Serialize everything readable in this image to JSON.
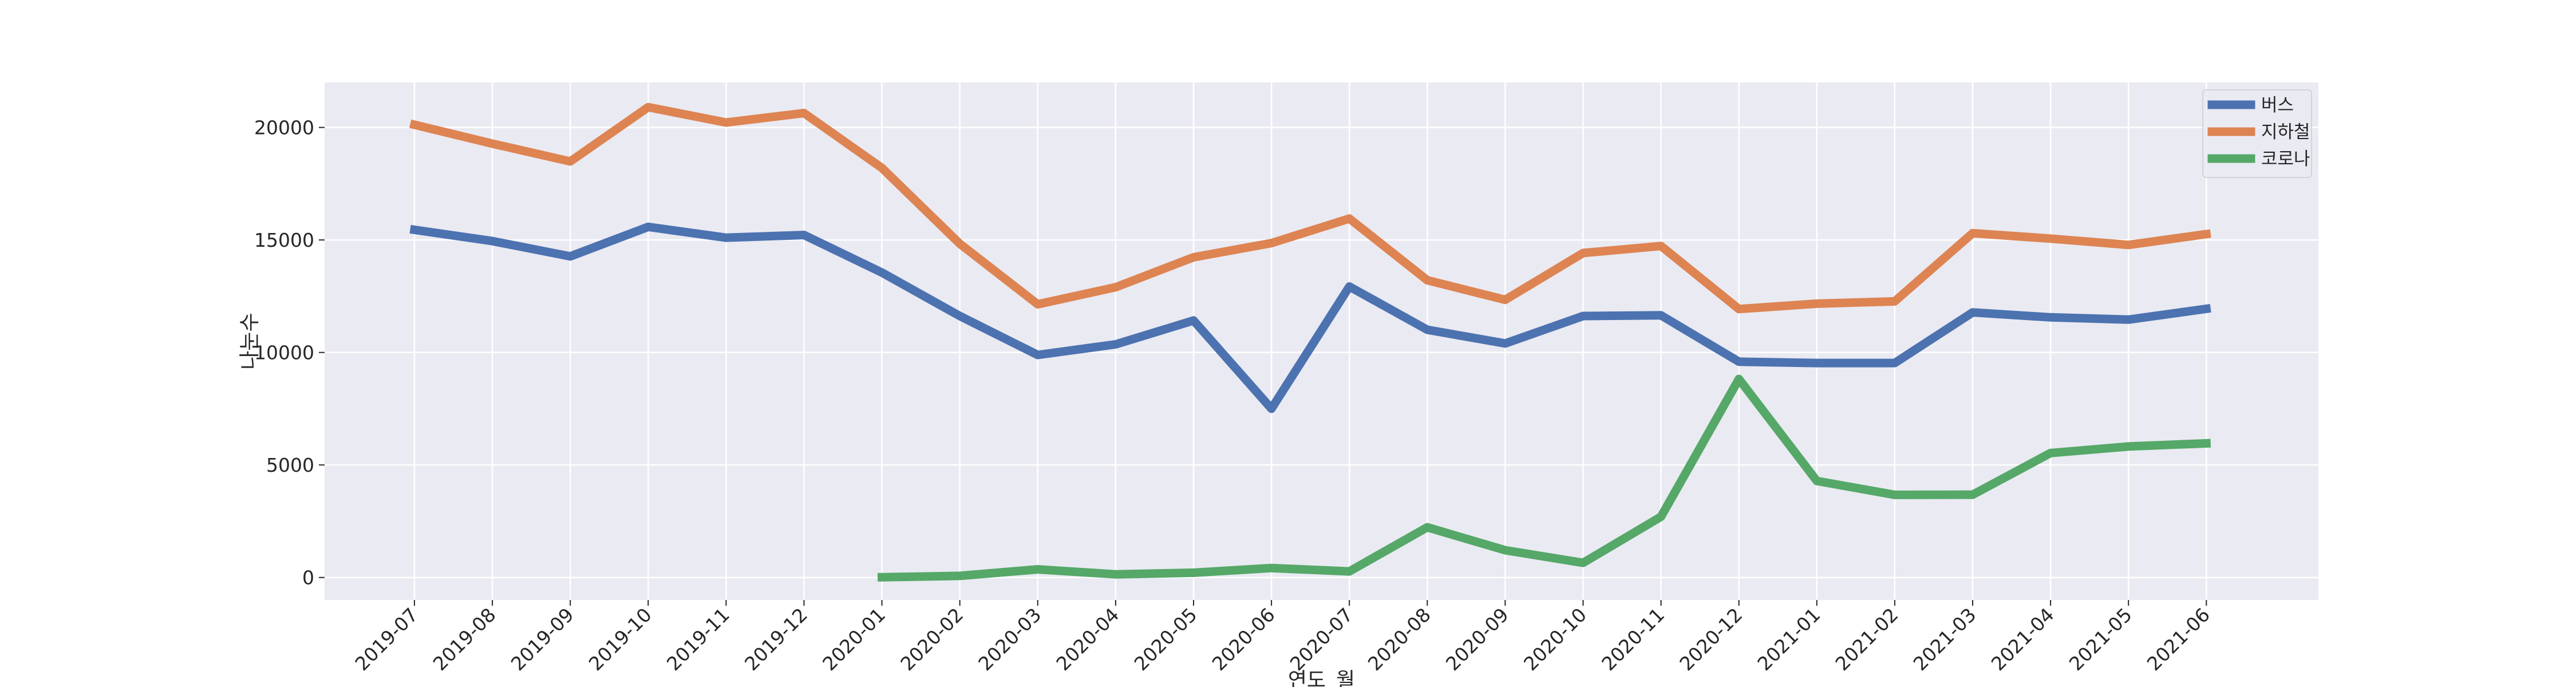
{
  "chart_data": {
    "type": "line",
    "xlabel": "연도_월",
    "ylabel": "나눈수",
    "categories": [
      "2019-07",
      "2019-08",
      "2019-09",
      "2019-10",
      "2019-11",
      "2019-12",
      "2020-01",
      "2020-02",
      "2020-03",
      "2020-04",
      "2020-05",
      "2020-06",
      "2020-07",
      "2020-08",
      "2020-09",
      "2020-10",
      "2020-11",
      "2020-12",
      "2021-01",
      "2021-02",
      "2021-03",
      "2021-04",
      "2021-05",
      "2021-06"
    ],
    "yticks": [
      0,
      5000,
      10000,
      15000,
      20000
    ],
    "ylim": [
      -1000,
      22000
    ],
    "grid": true,
    "background": "#eaeaf2",
    "legend_position": "top-right",
    "series": [
      {
        "name": "버스",
        "color": "#4c72b0",
        "values": [
          15450,
          14950,
          14270,
          15580,
          15100,
          15220,
          13550,
          11620,
          9890,
          10360,
          11420,
          7500,
          12930,
          11010,
          10400,
          11620,
          11650,
          9590,
          9530,
          9530,
          11780,
          11560,
          11460,
          11940
        ]
      },
      {
        "name": "지하철",
        "color": "#dd8452",
        "values": [
          20120,
          19280,
          18490,
          20900,
          20220,
          20640,
          18200,
          14830,
          12140,
          12900,
          14230,
          14860,
          15950,
          13210,
          12340,
          14420,
          14730,
          11930,
          12170,
          12270,
          15300,
          15060,
          14780,
          15260
        ]
      },
      {
        "name": "코로나",
        "color": "#55a868",
        "values": [
          null,
          null,
          null,
          null,
          null,
          null,
          10,
          70,
          360,
          140,
          210,
          420,
          270,
          2230,
          1210,
          650,
          2700,
          8820,
          4290,
          3670,
          3680,
          5530,
          5820,
          5960
        ]
      }
    ]
  }
}
